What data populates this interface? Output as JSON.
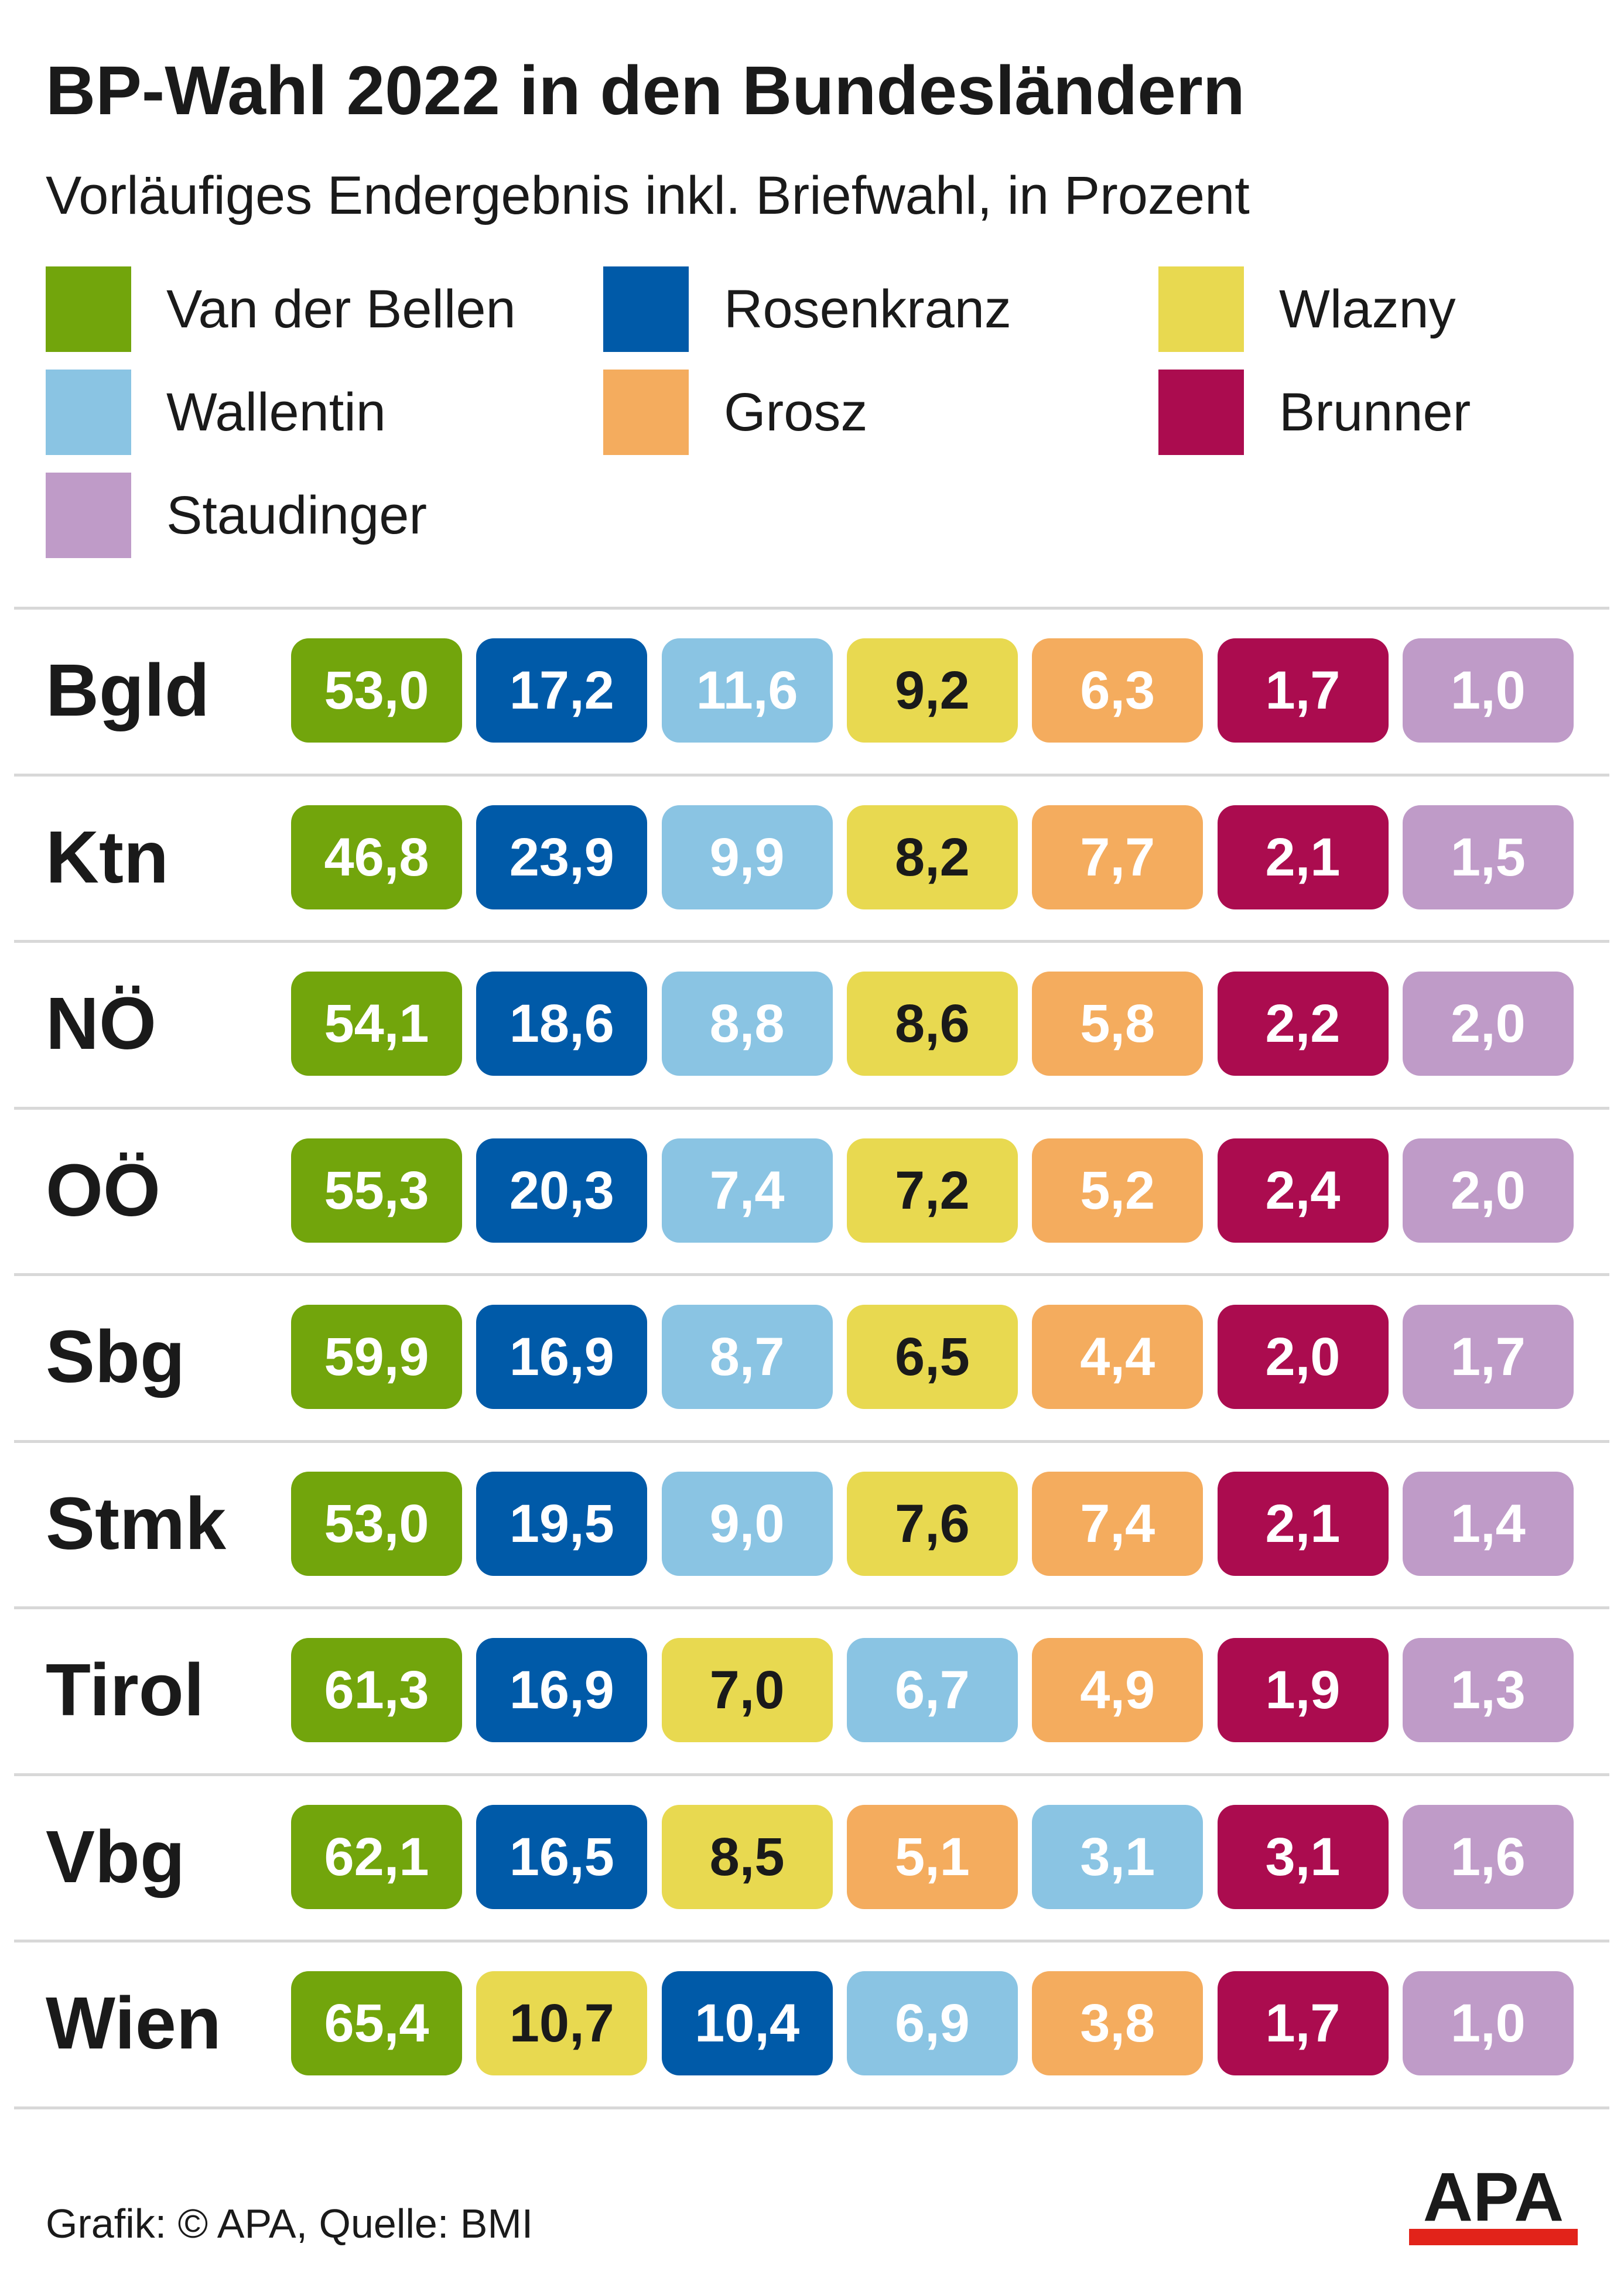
{
  "title": "BP-Wahl 2022 in den Bundesländern",
  "subtitle": "Vorläufiges Endergebnis inkl. Briefwahl, in Prozent",
  "source": "Grafik: © APA, Quelle: BMI",
  "logo_text": "APA",
  "colors": {
    "Van der Bellen": "#72a50c",
    "Rosenkranz": "#005aa8",
    "Wlazny": "#e8d950",
    "Wallentin": "#8ac4e3",
    "Grosz": "#f4ac5e",
    "Brunner": "#ab0c4f",
    "Staudinger": "#bf9bc8"
  },
  "chart_data": {
    "type": "table",
    "title": "BP-Wahl 2022 in den Bundesländern",
    "subtitle": "Vorläufiges Endergebnis inkl. Briefwahl, in Prozent",
    "legend": [
      "Van der Bellen",
      "Rosenkranz",
      "Wlazny",
      "Wallentin",
      "Grosz",
      "Brunner",
      "Staudinger"
    ],
    "rows": [
      {
        "label": "Bgld",
        "cells": [
          {
            "candidate": "Van der Bellen",
            "value": "53,0"
          },
          {
            "candidate": "Rosenkranz",
            "value": "17,2"
          },
          {
            "candidate": "Wallentin",
            "value": "11,6"
          },
          {
            "candidate": "Wlazny",
            "value": "9,2"
          },
          {
            "candidate": "Grosz",
            "value": "6,3"
          },
          {
            "candidate": "Brunner",
            "value": "1,7"
          },
          {
            "candidate": "Staudinger",
            "value": "1,0"
          }
        ]
      },
      {
        "label": "Ktn",
        "cells": [
          {
            "candidate": "Van der Bellen",
            "value": "46,8"
          },
          {
            "candidate": "Rosenkranz",
            "value": "23,9"
          },
          {
            "candidate": "Wallentin",
            "value": "9,9"
          },
          {
            "candidate": "Wlazny",
            "value": "8,2"
          },
          {
            "candidate": "Grosz",
            "value": "7,7"
          },
          {
            "candidate": "Brunner",
            "value": "2,1"
          },
          {
            "candidate": "Staudinger",
            "value": "1,5"
          }
        ]
      },
      {
        "label": "NÖ",
        "cells": [
          {
            "candidate": "Van der Bellen",
            "value": "54,1"
          },
          {
            "candidate": "Rosenkranz",
            "value": "18,6"
          },
          {
            "candidate": "Wallentin",
            "value": "8,8"
          },
          {
            "candidate": "Wlazny",
            "value": "8,6"
          },
          {
            "candidate": "Grosz",
            "value": "5,8"
          },
          {
            "candidate": "Brunner",
            "value": "2,2"
          },
          {
            "candidate": "Staudinger",
            "value": "2,0"
          }
        ]
      },
      {
        "label": "OÖ",
        "cells": [
          {
            "candidate": "Van der Bellen",
            "value": "55,3"
          },
          {
            "candidate": "Rosenkranz",
            "value": "20,3"
          },
          {
            "candidate": "Wallentin",
            "value": "7,4"
          },
          {
            "candidate": "Wlazny",
            "value": "7,2"
          },
          {
            "candidate": "Grosz",
            "value": "5,2"
          },
          {
            "candidate": "Brunner",
            "value": "2,4"
          },
          {
            "candidate": "Staudinger",
            "value": "2,0"
          }
        ]
      },
      {
        "label": "Sbg",
        "cells": [
          {
            "candidate": "Van der Bellen",
            "value": "59,9"
          },
          {
            "candidate": "Rosenkranz",
            "value": "16,9"
          },
          {
            "candidate": "Wallentin",
            "value": "8,7"
          },
          {
            "candidate": "Wlazny",
            "value": "6,5"
          },
          {
            "candidate": "Grosz",
            "value": "4,4"
          },
          {
            "candidate": "Brunner",
            "value": "2,0"
          },
          {
            "candidate": "Staudinger",
            "value": "1,7"
          }
        ]
      },
      {
        "label": "Stmk",
        "cells": [
          {
            "candidate": "Van der Bellen",
            "value": "53,0"
          },
          {
            "candidate": "Rosenkranz",
            "value": "19,5"
          },
          {
            "candidate": "Wallentin",
            "value": "9,0"
          },
          {
            "candidate": "Wlazny",
            "value": "7,6"
          },
          {
            "candidate": "Grosz",
            "value": "7,4"
          },
          {
            "candidate": "Brunner",
            "value": "2,1"
          },
          {
            "candidate": "Staudinger",
            "value": "1,4"
          }
        ]
      },
      {
        "label": "Tirol",
        "cells": [
          {
            "candidate": "Van der Bellen",
            "value": "61,3"
          },
          {
            "candidate": "Rosenkranz",
            "value": "16,9"
          },
          {
            "candidate": "Wlazny",
            "value": "7,0"
          },
          {
            "candidate": "Wallentin",
            "value": "6,7"
          },
          {
            "candidate": "Grosz",
            "value": "4,9"
          },
          {
            "candidate": "Brunner",
            "value": "1,9"
          },
          {
            "candidate": "Staudinger",
            "value": "1,3"
          }
        ]
      },
      {
        "label": "Vbg",
        "cells": [
          {
            "candidate": "Van der Bellen",
            "value": "62,1"
          },
          {
            "candidate": "Rosenkranz",
            "value": "16,5"
          },
          {
            "candidate": "Wlazny",
            "value": "8,5"
          },
          {
            "candidate": "Grosz",
            "value": "5,1"
          },
          {
            "candidate": "Wallentin",
            "value": "3,1"
          },
          {
            "candidate": "Brunner",
            "value": "3,1"
          },
          {
            "candidate": "Staudinger",
            "value": "1,6"
          }
        ]
      },
      {
        "label": "Wien",
        "cells": [
          {
            "candidate": "Van der Bellen",
            "value": "65,4"
          },
          {
            "candidate": "Wlazny",
            "value": "10,7"
          },
          {
            "candidate": "Rosenkranz",
            "value": "10,4"
          },
          {
            "candidate": "Wallentin",
            "value": "6,9"
          },
          {
            "candidate": "Grosz",
            "value": "3,8"
          },
          {
            "candidate": "Brunner",
            "value": "1,7"
          },
          {
            "candidate": "Staudinger",
            "value": "1,0"
          }
        ]
      }
    ]
  }
}
